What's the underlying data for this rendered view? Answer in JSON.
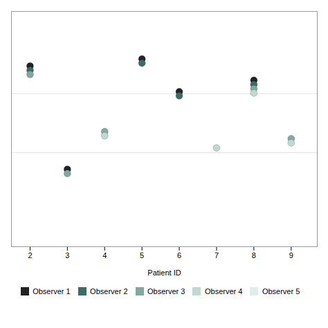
{
  "chart_data": {
    "type": "scatter",
    "xlabel": "Patient ID",
    "xlim": [
      1.5,
      9.7
    ],
    "xticks": [
      2,
      3,
      4,
      5,
      6,
      7,
      8,
      9
    ],
    "ylim": [
      0,
      10
    ],
    "yticks": [
      4.0,
      6.5
    ],
    "grid": true,
    "tick_labels": "x",
    "legend": "bottom",
    "series": [
      {
        "name": "Observer 1",
        "color": "#222222",
        "x": [
          2,
          3,
          5,
          6,
          8
        ],
        "values": [
          7.68,
          3.29,
          7.98,
          6.59,
          7.07
        ]
      },
      {
        "name": "Observer 2",
        "color": "#3d6b65",
        "x": [
          2,
          5,
          6,
          8
        ],
        "values": [
          7.5,
          7.8,
          6.41,
          6.89
        ]
      },
      {
        "name": "Observer 3",
        "color": "#80aaa0",
        "x": [
          2,
          3,
          4,
          8,
          9
        ],
        "values": [
          7.32,
          3.11,
          4.89,
          6.71,
          4.59
        ]
      },
      {
        "name": "Observer 4",
        "color": "#c0d8d2",
        "x": [
          4,
          7,
          8,
          9
        ],
        "values": [
          4.71,
          4.2,
          6.53,
          4.41
        ]
      },
      {
        "name": "Observer 5",
        "color": "#dceee9",
        "x": [],
        "values": []
      }
    ]
  }
}
